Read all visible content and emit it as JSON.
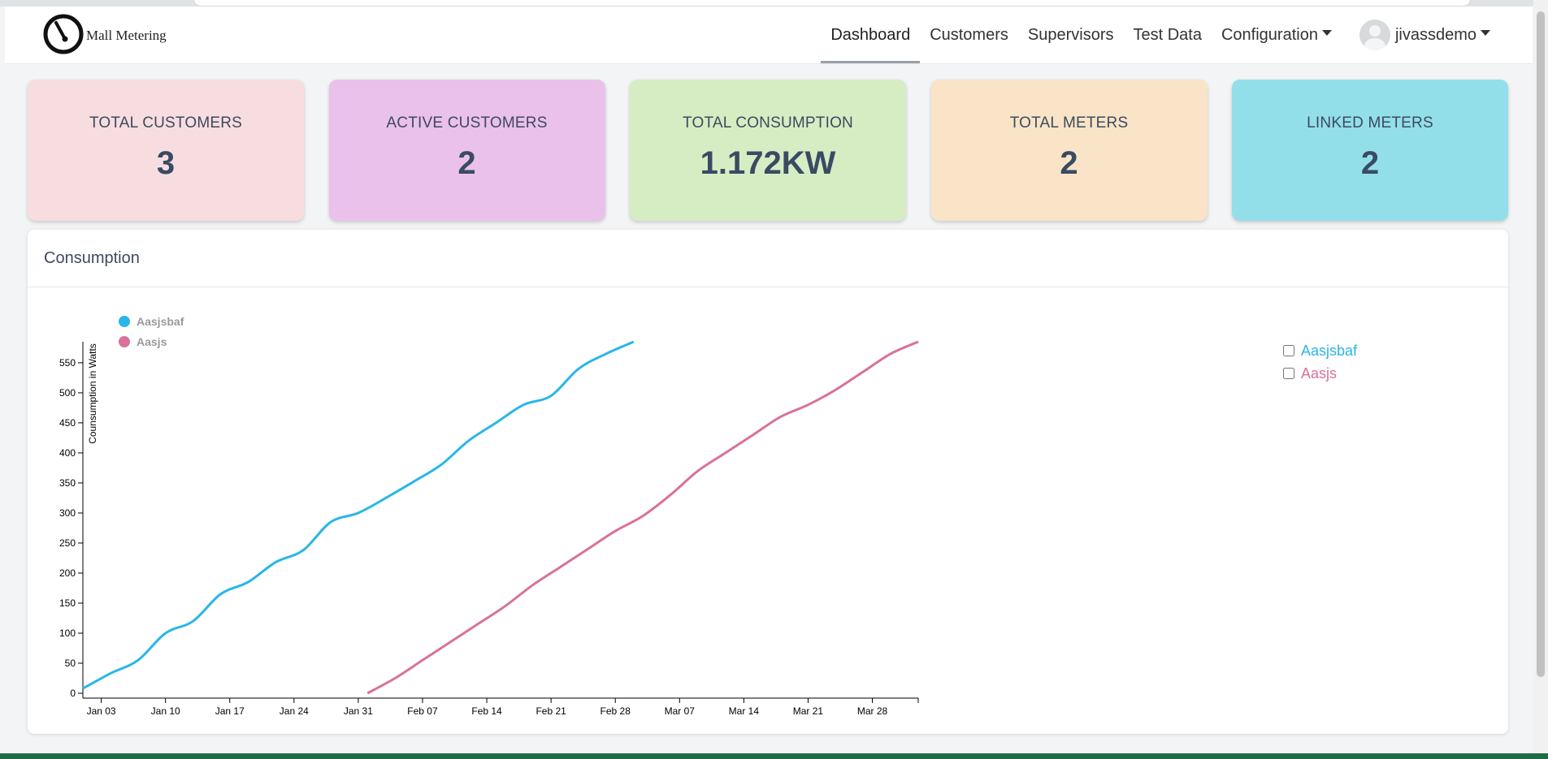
{
  "app": {
    "brand": "Mall Metering",
    "logo_icon": "gauge-icon"
  },
  "nav": {
    "items": [
      {
        "label": "Dashboard",
        "active": true
      },
      {
        "label": "Customers"
      },
      {
        "label": "Supervisors"
      },
      {
        "label": "Test Data"
      },
      {
        "label": "Configuration",
        "dropdown": true
      }
    ],
    "user": {
      "name": "jivassdemo",
      "avatar_icon": "user-avatar-icon"
    }
  },
  "stats": [
    {
      "label": "TOTAL CUSTOMERS",
      "value": "3",
      "color": "#f8dde0"
    },
    {
      "label": "ACTIVE CUSTOMERS",
      "value": "2",
      "color": "#eac1ea"
    },
    {
      "label": "TOTAL CONSUMPTION",
      "value": "1.172KW",
      "color": "#d6edc4"
    },
    {
      "label": "TOTAL METERS",
      "value": "2",
      "color": "#f9e4c8"
    },
    {
      "label": "LINKED METERS",
      "value": "2",
      "color": "#92dfea"
    }
  ],
  "consumption": {
    "title": "Consumption",
    "chart_data": {
      "type": "line",
      "ylabel": "Counsumption in Watts",
      "xlabel": "",
      "ylim": [
        0,
        585
      ],
      "xlim": [
        "2023-01-01",
        "2023-04-02"
      ],
      "yticks": [
        0,
        50,
        100,
        150,
        200,
        250,
        300,
        350,
        400,
        450,
        500,
        550
      ],
      "xticks": [
        "Jan 03",
        "Jan 10",
        "Jan 17",
        "Jan 24",
        "Jan 31",
        "Feb 07",
        "Feb 14",
        "Feb 21",
        "Feb 28",
        "Mar 07",
        "Mar 14",
        "Mar 21",
        "Mar 28"
      ],
      "legend": "top-left",
      "series": [
        {
          "name": "Aasjsbaf",
          "color": "#29b6e8",
          "points": [
            [
              "2023-01-01",
              8
            ],
            [
              "2023-01-04",
              33
            ],
            [
              "2023-01-07",
              55
            ],
            [
              "2023-01-10",
              100
            ],
            [
              "2023-01-13",
              120
            ],
            [
              "2023-01-16",
              165
            ],
            [
              "2023-01-19",
              185
            ],
            [
              "2023-01-22",
              218
            ],
            [
              "2023-01-25",
              238
            ],
            [
              "2023-01-28",
              285
            ],
            [
              "2023-01-31",
              300
            ],
            [
              "2023-02-03",
              325
            ],
            [
              "2023-02-06",
              352
            ],
            [
              "2023-02-09",
              380
            ],
            [
              "2023-02-12",
              420
            ],
            [
              "2023-02-15",
              450
            ],
            [
              "2023-02-18",
              480
            ],
            [
              "2023-02-21",
              495
            ],
            [
              "2023-02-24",
              540
            ],
            [
              "2023-02-27",
              565
            ],
            [
              "2023-03-02",
              585
            ]
          ]
        },
        {
          "name": "Aasjs",
          "color": "#d9719c",
          "points": [
            [
              "2023-02-01",
              0
            ],
            [
              "2023-02-04",
              25
            ],
            [
              "2023-02-07",
              55
            ],
            [
              "2023-02-10",
              85
            ],
            [
              "2023-02-13",
              115
            ],
            [
              "2023-02-16",
              145
            ],
            [
              "2023-02-19",
              180
            ],
            [
              "2023-02-22",
              210
            ],
            [
              "2023-02-25",
              240
            ],
            [
              "2023-02-28",
              270
            ],
            [
              "2023-03-03",
              295
            ],
            [
              "2023-03-06",
              330
            ],
            [
              "2023-03-09",
              370
            ],
            [
              "2023-03-12",
              400
            ],
            [
              "2023-03-15",
              430
            ],
            [
              "2023-03-18",
              460
            ],
            [
              "2023-03-21",
              480
            ],
            [
              "2023-03-24",
              505
            ],
            [
              "2023-03-27",
              535
            ],
            [
              "2023-03-30",
              565
            ],
            [
              "2023-04-02",
              585
            ]
          ]
        }
      ]
    },
    "filter_options": [
      {
        "label": "Aasjsbaf",
        "checked": false,
        "color": "#29b6e8"
      },
      {
        "label": "Aasjs",
        "checked": false,
        "color": "#d9719c"
      }
    ]
  }
}
